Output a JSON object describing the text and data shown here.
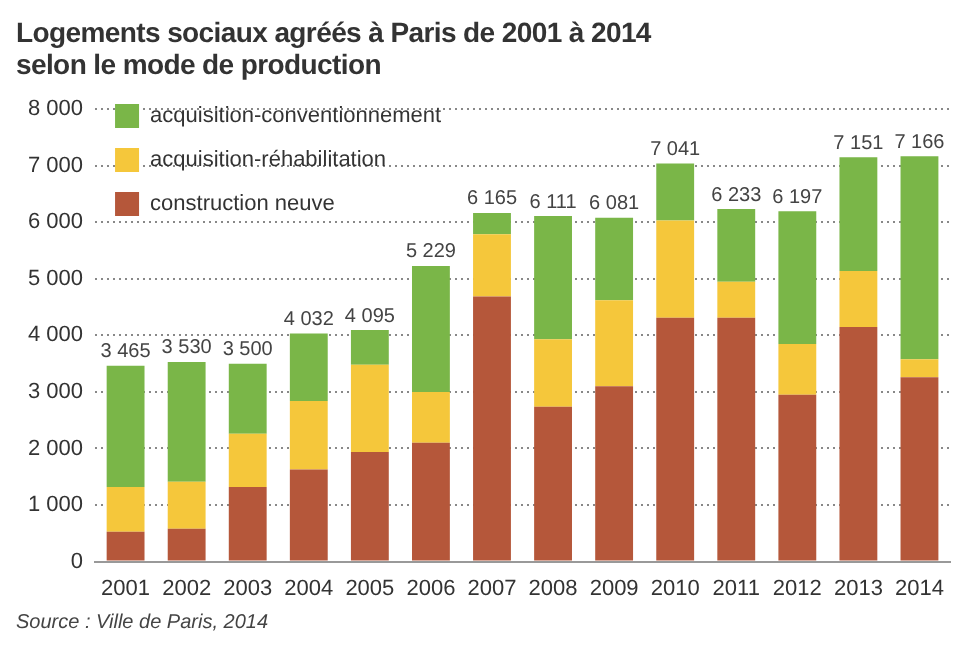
{
  "chart_data": {
    "type": "bar",
    "stacked": true,
    "title": "Logements sociaux agréés à Paris de 2001 à 2014\nselon le mode de production",
    "categories": [
      "2001",
      "2002",
      "2003",
      "2004",
      "2005",
      "2006",
      "2007",
      "2008",
      "2009",
      "2010",
      "2011",
      "2012",
      "2013",
      "2014"
    ],
    "series": [
      {
        "name": "construction neuve",
        "color": "#b5573a",
        "values": [
          530,
          580,
          1320,
          1630,
          1940,
          2100,
          4690,
          2740,
          3100,
          4310,
          4310,
          2950,
          4150,
          3260
        ]
      },
      {
        "name": "acquisition-réhabilitation",
        "color": "#f5c73b",
        "values": [
          790,
          830,
          940,
          1210,
          1540,
          900,
          1100,
          1190,
          1520,
          1720,
          640,
          900,
          990,
          320
        ]
      },
      {
        "name": "acquisition-conventionnement",
        "color": "#7ab648",
        "values": [
          2145,
          2120,
          1240,
          1192,
          615,
          2229,
          375,
          2181,
          1461,
          1011,
          1283,
          2347,
          2011,
          3586
        ]
      }
    ],
    "totals": [
      "3 465",
      "3 530",
      "3 500",
      "4 032",
      "4 095",
      "5 229",
      "6 165",
      "6 111",
      "6 081",
      "7 041",
      "6 233",
      "6 197",
      "7 151",
      "7 166"
    ],
    "ylim": [
      0,
      8000
    ],
    "yticks": [
      0,
      {
        "value": 1000,
        "label": "1 000"
      },
      {
        "value": 2000,
        "label": "2 000"
      },
      {
        "value": 3000,
        "label": "3 000"
      },
      {
        "value": 4000,
        "label": "4 000"
      },
      {
        "value": 5000,
        "label": "5 000"
      },
      {
        "value": 6000,
        "label": "6 000"
      },
      {
        "value": 7000,
        "label": "7 000"
      },
      {
        "value": 8000,
        "label": "8 000"
      }
    ],
    "grid": "y",
    "legend": "top left",
    "annotations": [
      "Source : Ville de Paris, 2014"
    ]
  }
}
